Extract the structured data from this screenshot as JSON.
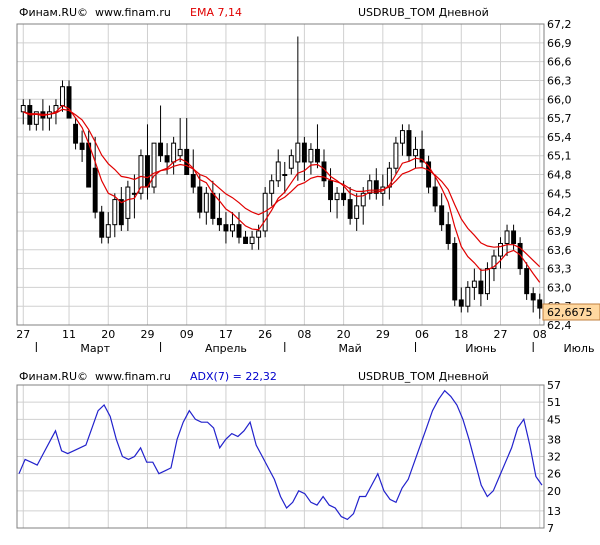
{
  "top_panel": {
    "header": {
      "source": "Финам.RU©",
      "site": "www.finam.ru",
      "indicator": "EMA 7,14",
      "instrument": "USDRUB_TOM Дневной"
    },
    "last_price": "62,6675"
  },
  "bottom_panel": {
    "header": {
      "source": "Финам.RU©",
      "site": "www.finam.ru",
      "indicator": "ADX(7) = 22,32",
      "instrument": "USDRUB_TOM Дневной"
    }
  },
  "colors": {
    "ema_fast": "#e00000",
    "ema_slow": "#e00000",
    "adx": "#2222cc",
    "indicator_label_ema": "#e00000",
    "indicator_label_adx": "#0000cc",
    "candle": "#000000",
    "grid": "#d0d0d0",
    "last_price_bg": "#ffd8a0"
  },
  "chart_data": [
    {
      "type": "candlestick",
      "title": "USDRUB_TOM Дневной",
      "ylim": [
        62.4,
        67.2
      ],
      "y_ticks": [
        "67,2",
        "66,9",
        "66,6",
        "66,3",
        "66,0",
        "65,7",
        "65,4",
        "65,1",
        "64,8",
        "64,5",
        "64,2",
        "63,9",
        "63,6",
        "63,3",
        "63,0",
        "62,7",
        "62,4"
      ],
      "x_ticks": [
        "27",
        "11",
        "20",
        "29",
        "09",
        "17",
        "26",
        "08",
        "20",
        "29",
        "06",
        "18",
        "27",
        "08"
      ],
      "x_tick_index": [
        0,
        7,
        13,
        19,
        25,
        31,
        37,
        43,
        49,
        55,
        61,
        67,
        73,
        79
      ],
      "months": [
        "Март",
        "Апрель",
        "Май",
        "Июнь",
        "Июль"
      ],
      "month_index": [
        11,
        31,
        50,
        70,
        85
      ],
      "month_sep_index": [
        2,
        21,
        40,
        60,
        78
      ],
      "grid": true,
      "candles": [
        [
          65.8,
          66.0,
          65.6,
          65.9
        ],
        [
          65.9,
          66.0,
          65.5,
          65.6
        ],
        [
          65.6,
          65.8,
          65.5,
          65.8
        ],
        [
          65.8,
          66.0,
          65.5,
          65.7
        ],
        [
          65.7,
          65.9,
          65.5,
          65.8
        ],
        [
          65.8,
          66.0,
          65.6,
          65.9
        ],
        [
          65.9,
          66.3,
          65.8,
          66.2
        ],
        [
          66.2,
          66.3,
          65.7,
          65.7
        ],
        [
          65.6,
          65.7,
          65.2,
          65.3
        ],
        [
          65.3,
          65.5,
          65.0,
          65.2
        ],
        [
          65.3,
          65.5,
          64.6,
          64.6
        ],
        [
          64.9,
          65.4,
          64.1,
          64.2
        ],
        [
          64.2,
          64.3,
          63.7,
          63.8
        ],
        [
          63.8,
          64.2,
          63.7,
          64.0
        ],
        [
          64.0,
          64.5,
          63.8,
          64.4
        ],
        [
          64.4,
          64.6,
          63.9,
          64.0
        ],
        [
          64.1,
          64.7,
          63.9,
          64.6
        ],
        [
          64.5,
          64.8,
          64.1,
          64.5
        ],
        [
          64.5,
          65.2,
          64.4,
          65.1
        ],
        [
          65.1,
          65.6,
          64.4,
          64.6
        ],
        [
          64.6,
          65.3,
          64.5,
          65.3
        ],
        [
          65.3,
          65.9,
          65.0,
          65.1
        ],
        [
          65.1,
          65.3,
          64.8,
          65.0
        ],
        [
          65.0,
          65.4,
          64.8,
          65.3
        ],
        [
          65.1,
          65.7,
          65.0,
          65.2
        ],
        [
          65.2,
          65.7,
          64.8,
          64.8
        ],
        [
          64.8,
          65.2,
          64.5,
          64.6
        ],
        [
          64.6,
          64.8,
          64.1,
          64.2
        ],
        [
          64.2,
          64.6,
          64.0,
          64.5
        ],
        [
          64.5,
          64.7,
          64.0,
          64.1
        ],
        [
          64.1,
          64.5,
          63.9,
          64.0
        ],
        [
          64.0,
          64.2,
          63.7,
          63.9
        ],
        [
          63.9,
          64.2,
          63.8,
          64.0
        ],
        [
          64.0,
          64.2,
          63.7,
          63.8
        ],
        [
          63.8,
          63.9,
          63.7,
          63.7
        ],
        [
          63.7,
          63.9,
          63.6,
          63.8
        ],
        [
          63.8,
          64.0,
          63.6,
          63.9
        ],
        [
          63.9,
          64.6,
          63.8,
          64.5
        ],
        [
          64.5,
          64.8,
          64.3,
          64.7
        ],
        [
          64.7,
          65.2,
          64.6,
          65.0
        ],
        [
          64.8,
          65.0,
          64.5,
          64.8
        ],
        [
          64.9,
          65.2,
          64.8,
          65.1
        ],
        [
          65.0,
          67.0,
          64.7,
          65.3
        ],
        [
          65.3,
          65.4,
          64.7,
          65.0
        ],
        [
          65.0,
          65.3,
          64.8,
          65.2
        ],
        [
          65.2,
          65.6,
          64.9,
          65.0
        ],
        [
          65.0,
          65.2,
          64.6,
          64.7
        ],
        [
          64.7,
          64.9,
          64.2,
          64.4
        ],
        [
          64.4,
          64.6,
          64.1,
          64.5
        ],
        [
          64.5,
          64.7,
          64.3,
          64.4
        ],
        [
          64.4,
          64.6,
          64.0,
          64.1
        ],
        [
          64.1,
          64.5,
          63.9,
          64.3
        ],
        [
          64.3,
          64.6,
          64.0,
          64.5
        ],
        [
          64.5,
          64.8,
          64.4,
          64.7
        ],
        [
          64.7,
          64.9,
          64.4,
          64.5
        ],
        [
          64.5,
          64.8,
          64.3,
          64.6
        ],
        [
          64.6,
          65.0,
          64.4,
          64.9
        ],
        [
          64.9,
          65.4,
          64.8,
          65.3
        ],
        [
          65.3,
          65.6,
          65.1,
          65.5
        ],
        [
          65.5,
          65.6,
          65.0,
          65.1
        ],
        [
          65.1,
          65.4,
          64.9,
          65.2
        ],
        [
          65.2,
          65.5,
          64.9,
          65.0
        ],
        [
          65.0,
          65.1,
          64.5,
          64.6
        ],
        [
          64.6,
          64.8,
          64.2,
          64.3
        ],
        [
          64.3,
          64.5,
          63.9,
          64.0
        ],
        [
          64.0,
          64.2,
          63.6,
          63.7
        ],
        [
          63.7,
          63.8,
          62.7,
          62.8
        ],
        [
          62.8,
          63.0,
          62.6,
          62.7
        ],
        [
          62.7,
          63.1,
          62.6,
          63.0
        ],
        [
          63.0,
          63.3,
          62.8,
          63.1
        ],
        [
          63.1,
          63.3,
          62.7,
          62.9
        ],
        [
          62.9,
          63.4,
          62.8,
          63.3
        ],
        [
          63.3,
          63.6,
          63.1,
          63.5
        ],
        [
          63.5,
          63.8,
          63.3,
          63.7
        ],
        [
          63.7,
          64.0,
          63.5,
          63.9
        ],
        [
          63.9,
          64.0,
          63.6,
          63.7
        ],
        [
          63.7,
          63.8,
          63.2,
          63.3
        ],
        [
          63.3,
          63.4,
          62.8,
          62.9
        ],
        [
          62.9,
          63.0,
          62.6,
          62.8
        ],
        [
          62.8,
          62.9,
          62.5,
          62.67
        ]
      ],
      "series": [
        {
          "name": "EMA 7",
          "values": [
            65.8,
            65.75,
            65.76,
            65.74,
            65.76,
            65.8,
            65.9,
            65.85,
            65.7,
            65.55,
            65.3,
            65.0,
            64.7,
            64.5,
            64.45,
            64.35,
            64.4,
            64.42,
            64.6,
            64.6,
            64.78,
            64.86,
            64.9,
            65.0,
            65.05,
            65.0,
            64.9,
            64.72,
            64.67,
            64.5,
            64.38,
            64.25,
            64.18,
            64.08,
            63.98,
            63.93,
            63.92,
            64.07,
            64.23,
            64.42,
            64.52,
            64.67,
            64.82,
            64.86,
            64.95,
            64.96,
            64.89,
            64.77,
            64.7,
            64.62,
            64.5,
            64.45,
            64.46,
            64.52,
            64.52,
            64.54,
            64.63,
            64.8,
            64.98,
            65.01,
            65.06,
            65.04,
            64.93,
            64.77,
            64.58,
            64.36,
            63.97,
            63.65,
            63.49,
            63.39,
            63.27,
            63.28,
            63.33,
            63.43,
            63.55,
            63.59,
            63.52,
            63.37,
            63.22,
            63.08
          ]
        },
        {
          "name": "EMA 14",
          "values": [
            65.8,
            65.77,
            65.77,
            65.76,
            65.76,
            65.78,
            65.84,
            65.82,
            65.75,
            65.67,
            65.52,
            65.32,
            65.11,
            64.97,
            64.88,
            64.77,
            64.75,
            64.72,
            64.77,
            64.75,
            64.82,
            64.86,
            64.88,
            64.93,
            64.96,
            64.94,
            64.89,
            64.8,
            64.76,
            64.67,
            64.58,
            64.49,
            64.43,
            64.35,
            64.26,
            64.2,
            64.16,
            64.21,
            64.28,
            64.38,
            64.44,
            64.53,
            64.63,
            64.67,
            64.74,
            64.77,
            64.76,
            64.71,
            64.68,
            64.64,
            64.57,
            64.53,
            64.53,
            64.55,
            64.55,
            64.56,
            64.6,
            64.7,
            64.81,
            64.85,
            64.9,
            64.91,
            64.87,
            64.79,
            64.69,
            64.56,
            64.32,
            64.09,
            63.94,
            63.83,
            63.71,
            63.66,
            63.64,
            63.65,
            63.68,
            63.68,
            63.63,
            63.53,
            63.43,
            63.33
          ]
        }
      ]
    },
    {
      "type": "line",
      "title": "USDRUB_TOM Дневной",
      "ylim": [
        7,
        57
      ],
      "y_ticks": [
        "57",
        "51",
        "45",
        "38",
        "32",
        "26",
        "20",
        "13",
        "7"
      ],
      "grid": true,
      "series": [
        {
          "name": "ADX(7)",
          "values": [
            26,
            31,
            30,
            29,
            33,
            37,
            41,
            34,
            33,
            34,
            35,
            36,
            42,
            48,
            50,
            46,
            38,
            32,
            31,
            32,
            35,
            30,
            30,
            26,
            27,
            28,
            38,
            44,
            48,
            45,
            44,
            44,
            42,
            35,
            38,
            40,
            39,
            41,
            44,
            36,
            32,
            28,
            24,
            18,
            14,
            16,
            20,
            19,
            16,
            15,
            18,
            15,
            14,
            11,
            10,
            12,
            18,
            18,
            22,
            26,
            20,
            17,
            16,
            21,
            24,
            30,
            36,
            42,
            48,
            52,
            55,
            53,
            50,
            45,
            38,
            30,
            22,
            18,
            20,
            25,
            30,
            35,
            42,
            45,
            36,
            25,
            22
          ]
        }
      ]
    }
  ]
}
